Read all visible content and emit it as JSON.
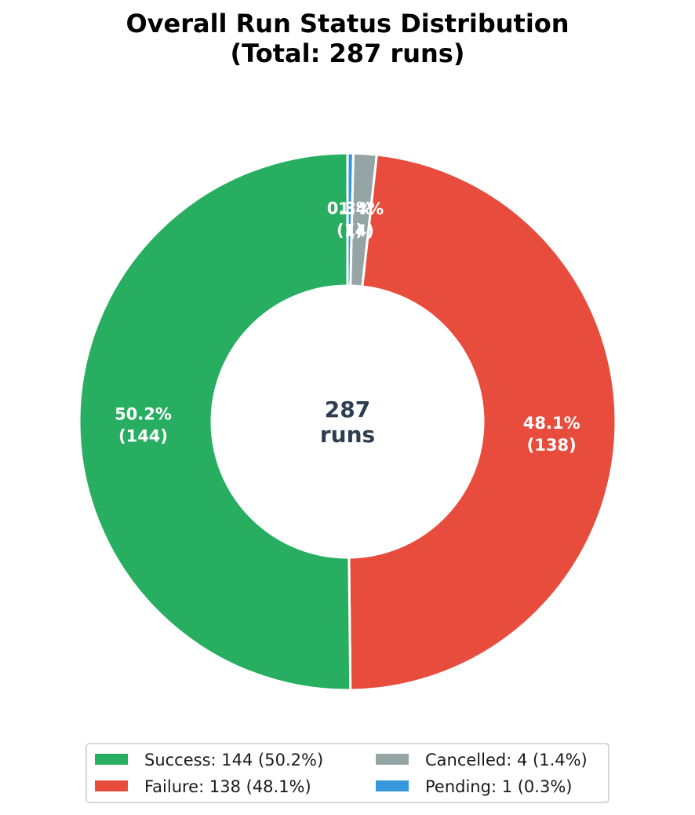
{
  "chart_data": {
    "type": "pie",
    "variant": "donut",
    "title_line1": "Overall Run Status Distribution",
    "title_line2": "(Total: 287 runs)",
    "center_label_line1": "287",
    "center_label_line2": "runs",
    "total": 287,
    "start_angle_deg": 90,
    "direction": "clockwise",
    "slices": [
      {
        "key": "pending",
        "value": 1,
        "percent": "0.3%",
        "count_label": "(1)",
        "color": "#3498db"
      },
      {
        "key": "cancelled",
        "value": 4,
        "percent": "1.4%",
        "count_label": "(4)",
        "color": "#95a5a6"
      },
      {
        "key": "failure",
        "value": 138,
        "percent": "48.1%",
        "count_label": "(138)",
        "color": "#e74c3c"
      },
      {
        "key": "success",
        "value": 144,
        "percent": "50.2%",
        "count_label": "(144)",
        "color": "#27ae60"
      }
    ],
    "legend": {
      "placement": "bottom-center",
      "columns": 2,
      "entries": [
        {
          "text": "Success: 144 (50.2%)",
          "color": "#27ae60"
        },
        {
          "text": "Failure: 138 (48.1%)",
          "color": "#e74c3c"
        },
        {
          "text": "Cancelled: 4 (1.4%)",
          "color": "#95a5a6"
        },
        {
          "text": "Pending: 1 (0.3%)",
          "color": "#3498db"
        }
      ]
    }
  }
}
